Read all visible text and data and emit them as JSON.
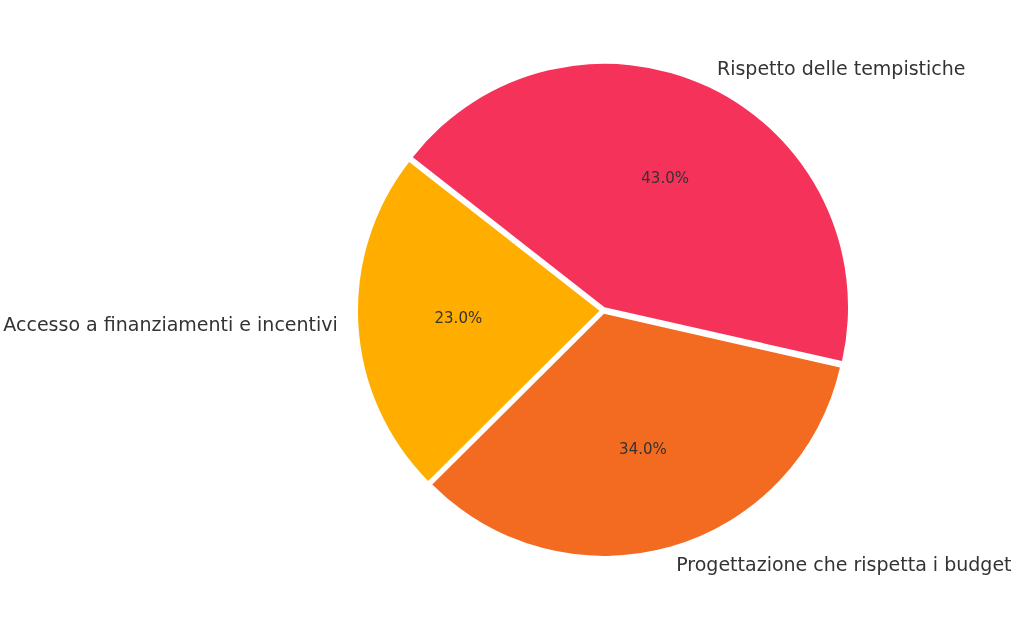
{
  "chart_data": {
    "type": "pie",
    "categories": [
      "Rispetto delle tempistiche",
      "Progettazione che rispetta i budget",
      "Accesso a finanziamenti e incentivi"
    ],
    "values": [
      43,
      34,
      23
    ],
    "colors": [
      "#f5325a",
      "#f26b21",
      "#ffae00"
    ],
    "value_labels": [
      "43.0%",
      "34.0%",
      "23.0%"
    ],
    "legend": false
  }
}
